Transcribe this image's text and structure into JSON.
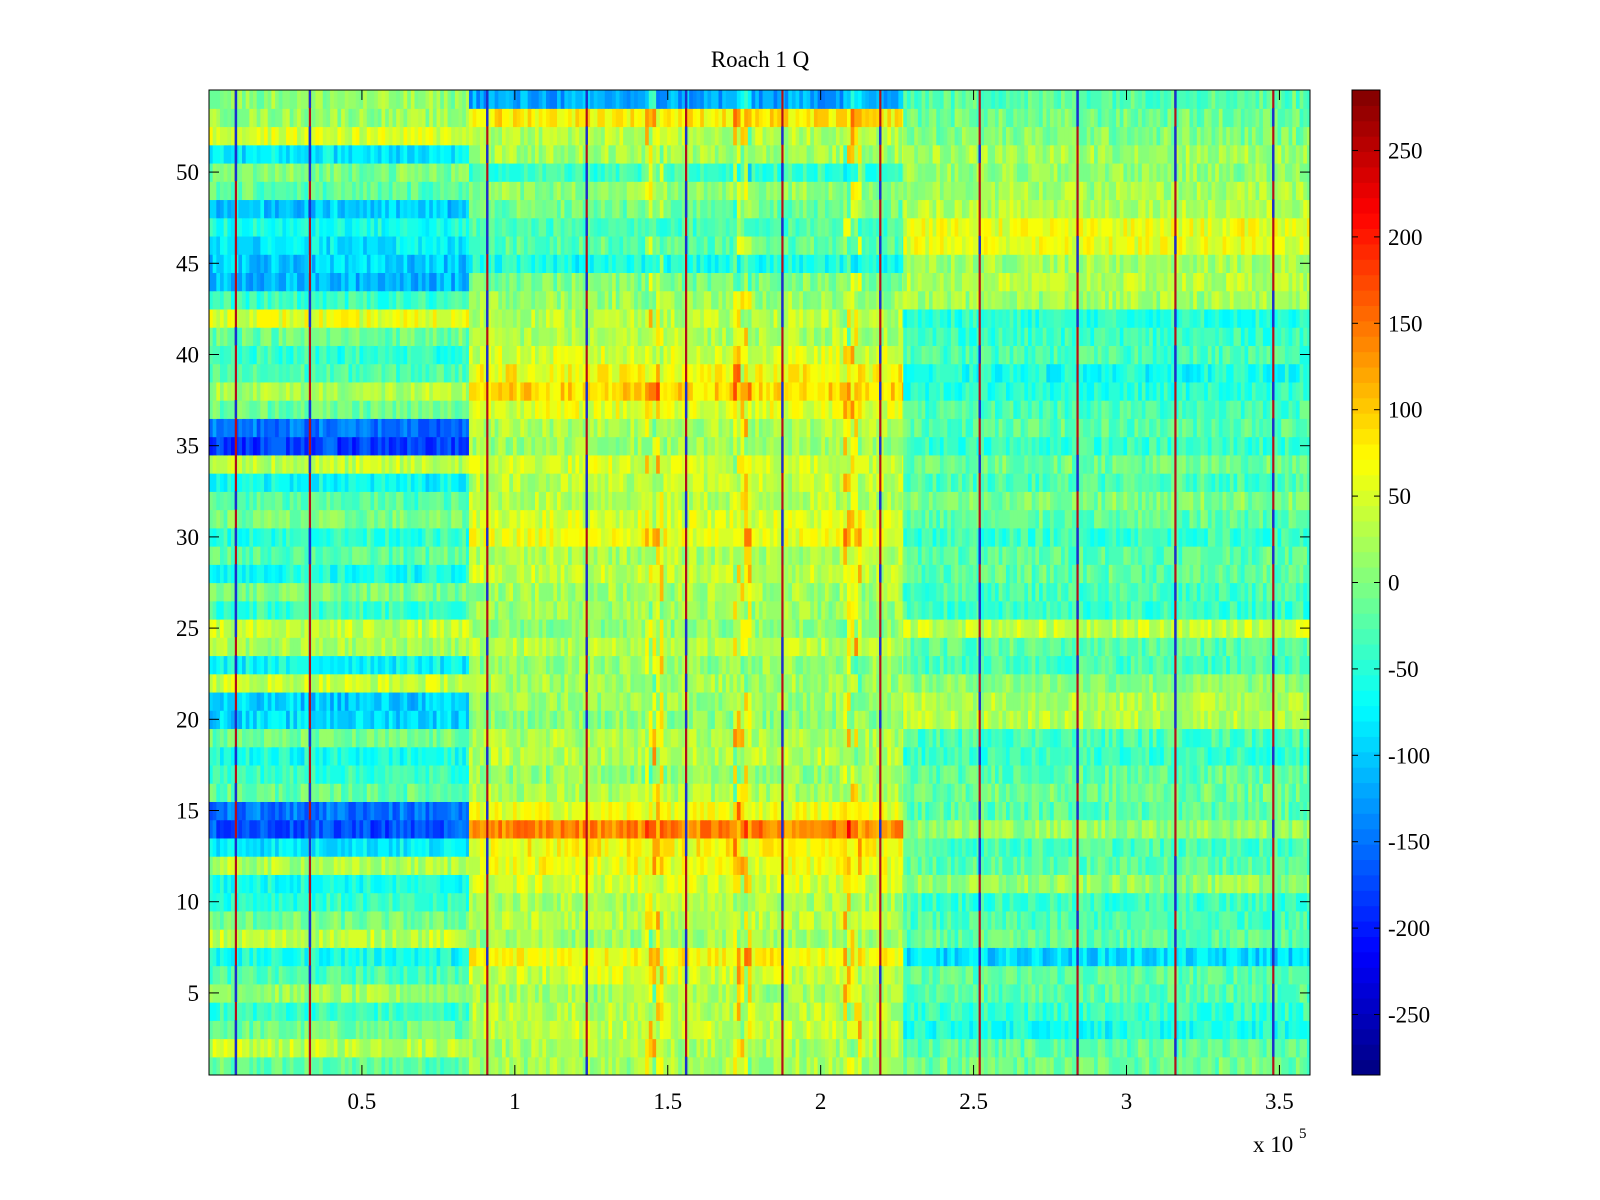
{
  "chart_data": {
    "type": "heatmap",
    "title": "Roach 1 Q",
    "xlabel": "",
    "ylabel": "",
    "x_multiplier_label": {
      "base": "x 10",
      "exponent": "5"
    },
    "xlim": [
      0,
      3.6
    ],
    "ylim": [
      0.5,
      54.5
    ],
    "x_ticks": [
      0.5,
      1,
      1.5,
      2,
      2.5,
      3,
      3.5
    ],
    "x_tick_labels": [
      "0.5",
      "1",
      "1.5",
      "2",
      "2.5",
      "3",
      "3.5"
    ],
    "y_ticks": [
      5,
      10,
      15,
      20,
      25,
      30,
      35,
      40,
      45,
      50
    ],
    "y_tick_labels": [
      "5",
      "10",
      "15",
      "20",
      "25",
      "30",
      "35",
      "40",
      "45",
      "50"
    ],
    "n_rows": 54,
    "grid": false,
    "colormap": "jet",
    "colorbar": {
      "clim": [
        -285,
        285
      ],
      "ticks": [
        -250,
        -200,
        -150,
        -100,
        -50,
        0,
        50,
        100,
        150,
        200,
        250
      ],
      "tick_labels": [
        "-250",
        "-200",
        "-150",
        "-100",
        "-50",
        "0",
        "50",
        "100",
        "150",
        "200",
        "250"
      ],
      "levels": 64,
      "location": "right"
    },
    "segments_x": [
      0,
      0.85,
      2.27,
      3.6
    ],
    "row_levels_seg1": [
      -20,
      35,
      -10,
      -40,
      15,
      -30,
      -60,
      35,
      -10,
      -45,
      -60,
      25,
      -80,
      -170,
      -150,
      -15,
      -40,
      -60,
      -10,
      -90,
      -100,
      40,
      -70,
      20,
      35,
      -40,
      -5,
      -60,
      -20,
      -45,
      -5,
      -25,
      -70,
      35,
      -180,
      -150,
      -10,
      25,
      -30,
      -45,
      -10,
      55,
      -40,
      -110,
      -100,
      -80,
      -60,
      -100,
      -20,
      0,
      -80,
      50,
      15,
      10
    ],
    "row_levels_seg2": [
      20,
      25,
      40,
      30,
      20,
      45,
      70,
      15,
      30,
      25,
      45,
      60,
      70,
      140,
      60,
      25,
      10,
      30,
      25,
      5,
      15,
      20,
      10,
      30,
      5,
      15,
      20,
      35,
      25,
      60,
      50,
      30,
      35,
      45,
      15,
      25,
      55,
      90,
      70,
      45,
      25,
      30,
      15,
      0,
      -60,
      -20,
      -30,
      -10,
      10,
      -40,
      20,
      30,
      80,
      -120
    ],
    "row_levels_seg3": [
      -10,
      -20,
      -60,
      -40,
      -20,
      -20,
      -90,
      -20,
      -30,
      -40,
      10,
      -20,
      -30,
      15,
      -20,
      -10,
      -20,
      -40,
      -30,
      30,
      30,
      5,
      -30,
      -20,
      40,
      -40,
      -30,
      -20,
      -20,
      -40,
      -20,
      0,
      -30,
      -10,
      -40,
      -20,
      -30,
      -50,
      -60,
      -30,
      -40,
      -50,
      20,
      30,
      20,
      60,
      60,
      30,
      20,
      10,
      20,
      0,
      -10,
      -20
    ],
    "vertical_lines_x": [
      0.088,
      0.33,
      0.91,
      1.235,
      1.56,
      1.875,
      2.195,
      2.52,
      2.84,
      3.16,
      3.48
    ],
    "hot_columns_x": [
      1.45,
      1.74,
      2.1
    ]
  }
}
